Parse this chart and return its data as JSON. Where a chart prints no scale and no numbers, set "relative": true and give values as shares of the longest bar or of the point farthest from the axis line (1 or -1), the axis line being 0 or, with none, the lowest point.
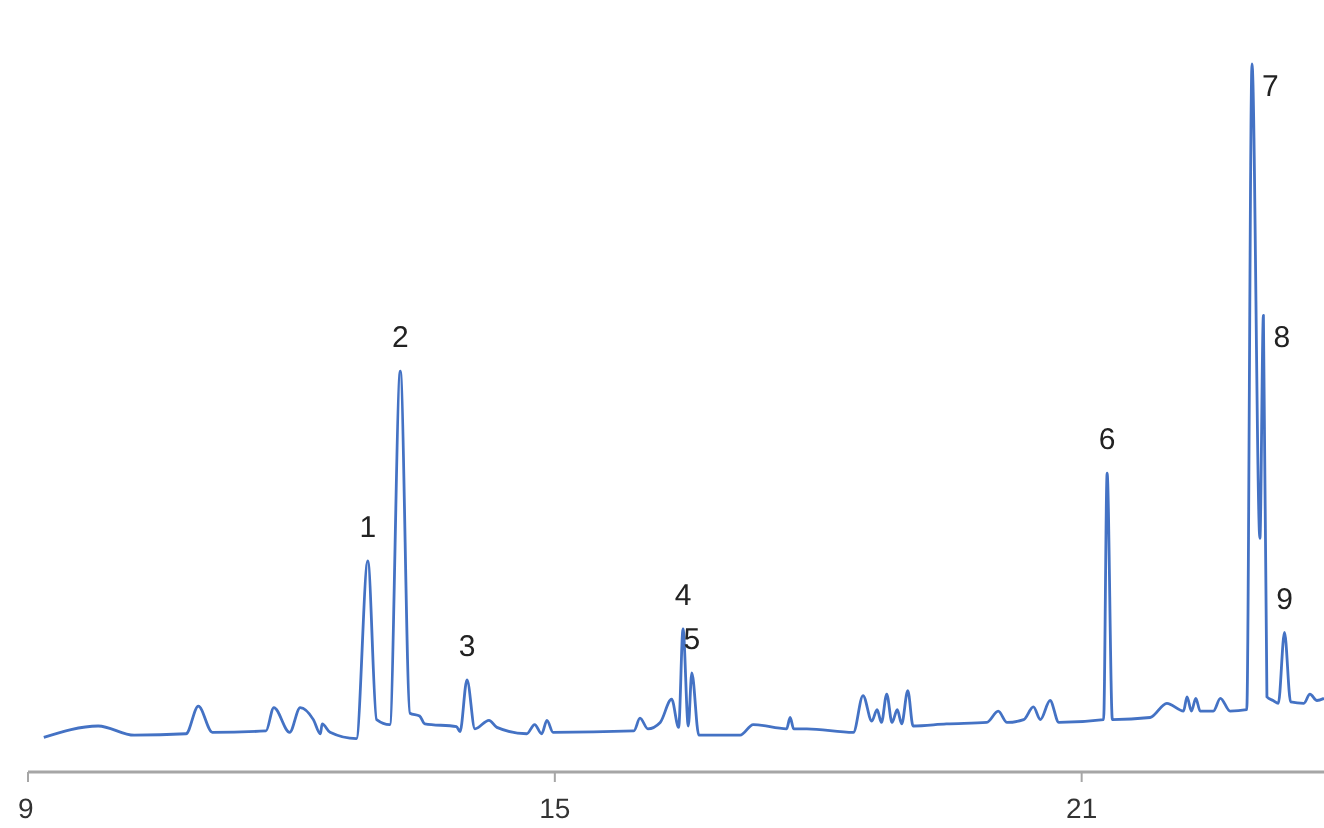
{
  "chart_data": {
    "type": "line",
    "relative": true,
    "xlim": [
      9,
      23.76
    ],
    "xticks": [
      9,
      15,
      21
    ],
    "grid": false,
    "marker": "none",
    "line_style": "solid",
    "series": [
      {
        "color": "#4472c4",
        "x": [
          9.18,
          9.8,
          10.21,
          10.8,
          10.94,
          11.1,
          11.71,
          11.8,
          11.98,
          12.1,
          12.25,
          12.33,
          12.35,
          12.44,
          12.74,
          12.87,
          12.97,
          13.12,
          13.24,
          13.35,
          13.46,
          13.52,
          13.88,
          13.92,
          14.0,
          14.09,
          14.25,
          14.34,
          14.68,
          14.77,
          14.85,
          14.91,
          14.98,
          15.9,
          15.97,
          16.06,
          16.2,
          16.33,
          16.41,
          16.46,
          16.52,
          16.56,
          16.64,
          17.11,
          17.26,
          17.64,
          17.68,
          17.72,
          17.87,
          18.4,
          18.51,
          18.61,
          18.67,
          18.72,
          18.78,
          18.84,
          18.9,
          18.95,
          19.02,
          19.08,
          19.46,
          19.92,
          20.05,
          20.15,
          20.34,
          20.45,
          20.53,
          20.64,
          20.74,
          21.25,
          21.29,
          21.35,
          21.78,
          21.97,
          22.16,
          22.2,
          22.25,
          22.3,
          22.35,
          22.5,
          22.58,
          22.69,
          22.88,
          22.94,
          23.03,
          23.07,
          23.11,
          23.18,
          23.24,
          23.31,
          23.38,
          23.53,
          23.6,
          23.68,
          23.76
        ],
        "values": [
          0.049,
          0.065,
          0.052,
          0.054,
          0.093,
          0.056,
          0.058,
          0.091,
          0.056,
          0.091,
          0.074,
          0.054,
          0.068,
          0.056,
          0.047,
          0.298,
          0.074,
          0.067,
          0.566,
          0.083,
          0.079,
          0.068,
          0.064,
          0.057,
          0.13,
          0.061,
          0.073,
          0.063,
          0.054,
          0.067,
          0.054,
          0.073,
          0.056,
          0.058,
          0.076,
          0.061,
          0.07,
          0.103,
          0.063,
          0.202,
          0.065,
          0.14,
          0.052,
          0.052,
          0.067,
          0.061,
          0.077,
          0.061,
          0.061,
          0.056,
          0.108,
          0.072,
          0.088,
          0.07,
          0.11,
          0.07,
          0.088,
          0.068,
          0.115,
          0.065,
          0.068,
          0.07,
          0.086,
          0.07,
          0.074,
          0.092,
          0.074,
          0.101,
          0.07,
          0.074,
          0.422,
          0.074,
          0.077,
          0.097,
          0.086,
          0.106,
          0.086,
          0.104,
          0.086,
          0.086,
          0.104,
          0.086,
          0.088,
          1.0,
          0.33,
          0.645,
          0.106,
          0.101,
          0.097,
          0.197,
          0.099,
          0.097,
          0.11,
          0.101,
          0.104
        ]
      }
    ],
    "annotations": [
      {
        "text": "1",
        "x": 12.87,
        "y": 0.298
      },
      {
        "text": "2",
        "x": 13.24,
        "y": 0.566
      },
      {
        "text": "3",
        "x": 14.0,
        "y": 0.13
      },
      {
        "text": "4",
        "x": 16.46,
        "y": 0.202
      },
      {
        "text": "5",
        "x": 16.56,
        "y": 0.14
      },
      {
        "text": "6",
        "x": 21.29,
        "y": 0.422
      },
      {
        "text": "7",
        "x": 22.94,
        "y": 1.0
      },
      {
        "text": "8",
        "x": 23.07,
        "y": 0.645
      },
      {
        "text": "9",
        "x": 23.31,
        "y": 0.197
      }
    ]
  }
}
